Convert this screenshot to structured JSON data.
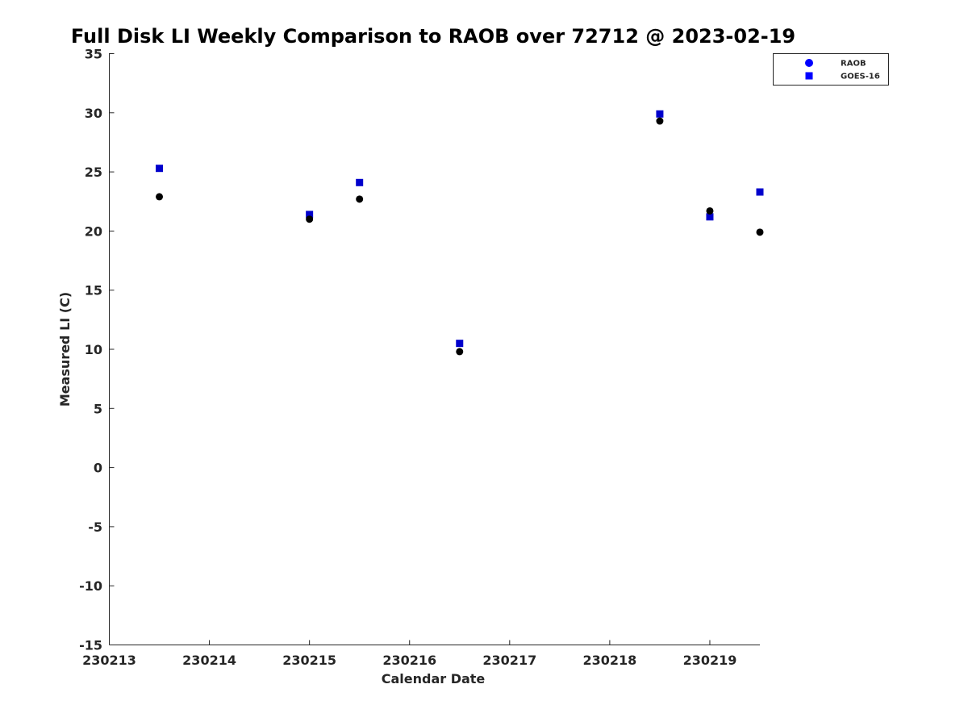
{
  "chart_data": {
    "type": "scatter",
    "title": "Full Disk LI Weekly Comparison to RAOB over 72712 @ 2023-02-19",
    "xlabel": "Calendar Date",
    "ylabel": "Measured LI (C)",
    "xlim": [
      "2023-02-13",
      "2023-02-19T12:00"
    ],
    "ylim": [
      -15,
      35
    ],
    "x_ticks": [
      "230213",
      "230214",
      "230215",
      "230216",
      "230217",
      "230218",
      "230219"
    ],
    "y_ticks": [
      "35",
      "30",
      "25",
      "20",
      "15",
      "10",
      "5",
      "0",
      "-5",
      "-10",
      "-15"
    ],
    "grid": false,
    "legend_position": "top-right",
    "series": [
      {
        "name": "RAOB",
        "marker": "circle",
        "color": "#000000",
        "points": [
          {
            "x": "2023-02-13T12:00",
            "y": 22.9
          },
          {
            "x": "2023-02-15T00:00",
            "y": 21.0
          },
          {
            "x": "2023-02-15T12:00",
            "y": 22.7
          },
          {
            "x": "2023-02-16T12:00",
            "y": 9.8
          },
          {
            "x": "2023-02-18T12:00",
            "y": 29.3
          },
          {
            "x": "2023-02-19T00:00",
            "y": 21.7
          },
          {
            "x": "2023-02-19T12:00",
            "y": 19.9
          }
        ]
      },
      {
        "name": "GOES-16",
        "marker": "square",
        "color": "#0000cc",
        "points": [
          {
            "x": "2023-02-13T12:00",
            "y": 25.3
          },
          {
            "x": "2023-02-15T00:00",
            "y": 21.4
          },
          {
            "x": "2023-02-15T12:00",
            "y": 24.1
          },
          {
            "x": "2023-02-16T12:00",
            "y": 10.5
          },
          {
            "x": "2023-02-18T12:00",
            "y": 29.9
          },
          {
            "x": "2023-02-19T00:00",
            "y": 21.2
          },
          {
            "x": "2023-02-19T12:00",
            "y": 23.3
          }
        ]
      }
    ],
    "legend_marker_color": "#0000ff"
  }
}
